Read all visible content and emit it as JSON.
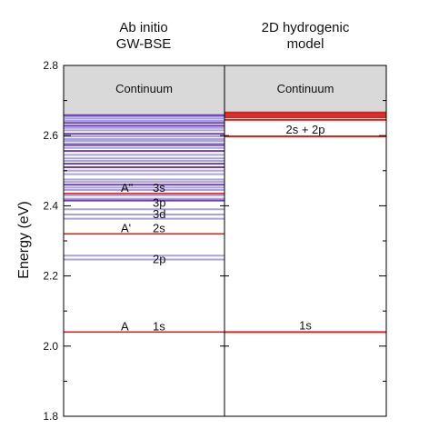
{
  "chart_data": {
    "type": "energy-level diagram",
    "ylabel": "Energy (eV)",
    "ylim": [
      1.8,
      2.8
    ],
    "y_ticks": [
      "1.8",
      "2.0",
      "2.2",
      "2.4",
      "2.6",
      "2.8"
    ],
    "columns": [
      {
        "title_line1": "Ab initio",
        "title_line2": "GW-BSE",
        "continuum_label": "Continuum",
        "continuum_from": 2.66,
        "primary_levels": [
          {
            "energy": 2.04,
            "label": "1s",
            "marker": "A"
          },
          {
            "energy": 2.32,
            "label": "2s",
            "marker": "A'"
          },
          {
            "energy": 2.435,
            "label": "3s",
            "marker": "A\""
          }
        ],
        "level_labels": [
          {
            "energy": 2.41,
            "label": "3p"
          },
          {
            "energy": 2.378,
            "label": "3d"
          },
          {
            "energy": 2.25,
            "label": "2p"
          }
        ],
        "dark_levels": [
          2.658,
          2.636,
          2.628,
          2.605,
          2.573,
          2.556,
          2.52,
          2.51,
          2.46,
          2.415
        ],
        "light_levels": [
          2.654,
          2.648,
          2.642,
          2.622,
          2.615,
          2.598,
          2.59,
          2.585,
          2.578,
          2.565,
          2.545,
          2.535,
          2.528,
          2.5,
          2.49,
          2.475,
          2.468,
          2.452,
          2.445,
          2.43,
          2.42,
          2.39,
          2.375,
          2.363,
          2.258,
          2.247
        ]
      },
      {
        "title_line1": "2D hydrogenic",
        "title_line2": "model",
        "continuum_label": "Continuum",
        "continuum_from": 2.66,
        "primary_levels": [
          {
            "energy": 2.04,
            "label": "1s"
          },
          {
            "energy": 2.598,
            "label": "2s + 2p"
          }
        ],
        "extra_levels": [
          2.645,
          2.652,
          2.657,
          2.662,
          2.666
        ]
      }
    ],
    "colors": {
      "continuum": "#d9d9d9",
      "primary": "#e0201e",
      "dark_level": "#6a3fb0",
      "light_level": "#aaa2dd",
      "axis": "#000000"
    }
  }
}
